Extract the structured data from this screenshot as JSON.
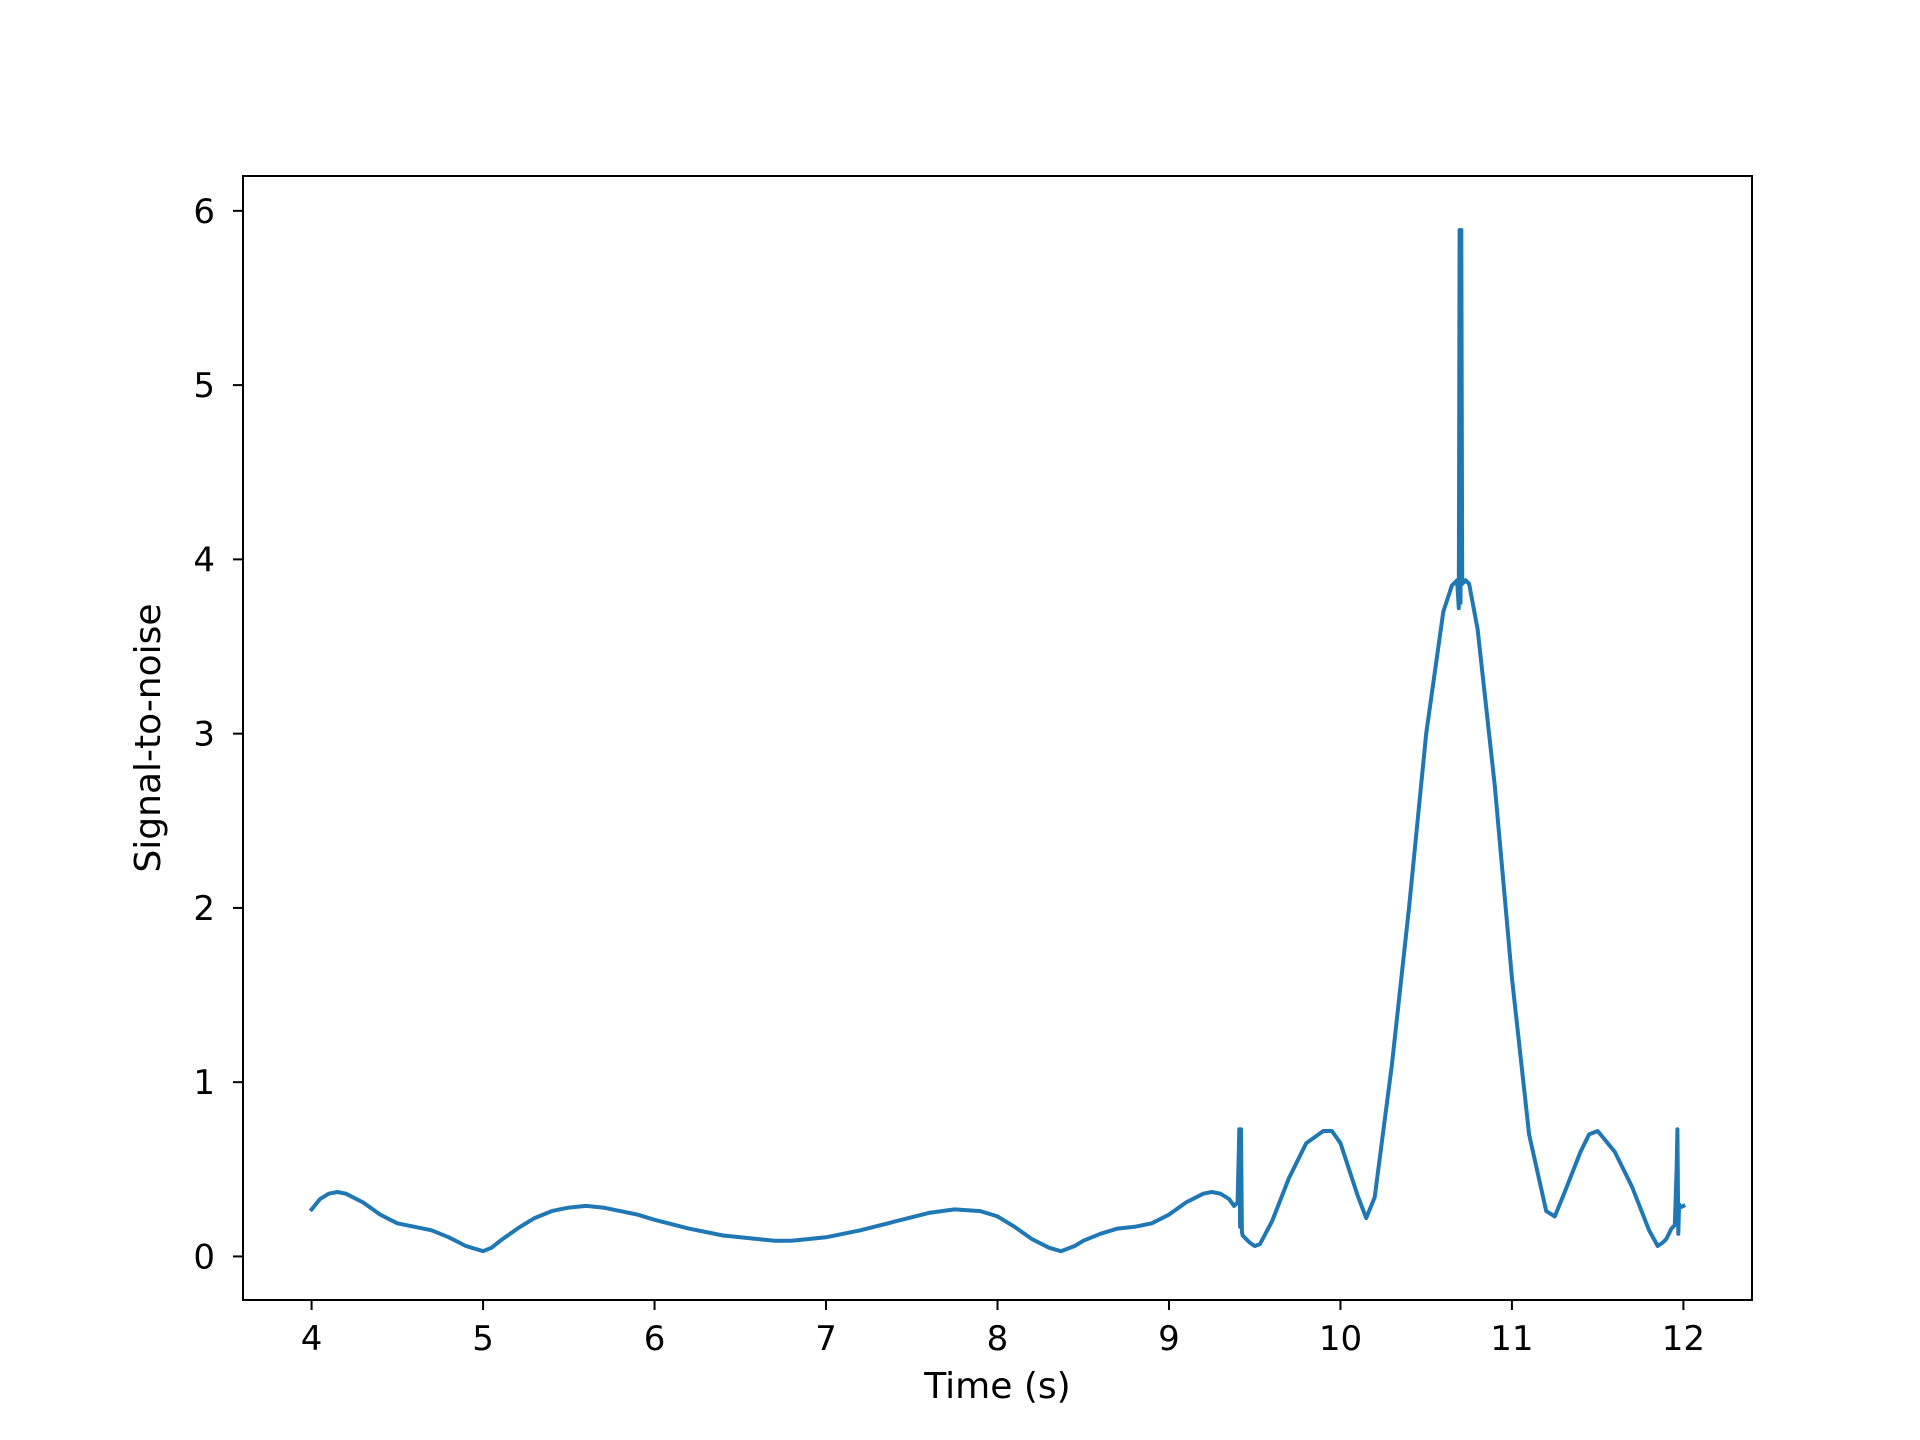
{
  "chart_data": {
    "type": "line",
    "title": "",
    "xlabel": "Time (s)",
    "ylabel": "Signal-to-noise",
    "xlim": [
      3.6,
      12.4
    ],
    "ylim": [
      -0.25,
      6.2
    ],
    "x_ticks": [
      4,
      5,
      6,
      7,
      8,
      9,
      10,
      11,
      12
    ],
    "y_ticks": [
      0,
      1,
      2,
      3,
      4,
      5,
      6
    ],
    "grid": false,
    "legend": "none",
    "series_color": "#1f77b4",
    "series": [
      {
        "x": [
          4.0,
          4.05,
          4.1,
          4.15,
          4.2,
          4.3,
          4.4,
          4.5,
          4.6,
          4.7,
          4.8,
          4.9,
          5.0,
          5.05,
          5.1,
          5.2,
          5.3,
          5.4,
          5.5,
          5.6,
          5.7,
          5.8,
          5.9,
          6.0,
          6.2,
          6.4,
          6.6,
          6.7,
          6.8,
          7.0,
          7.2,
          7.4,
          7.6,
          7.75,
          7.9,
          8.0,
          8.1,
          8.2,
          8.3,
          8.37,
          8.45,
          8.5,
          8.6,
          8.7,
          8.8,
          8.9,
          9.0,
          9.1,
          9.2,
          9.25,
          9.3,
          9.35,
          9.38,
          9.4,
          9.41,
          9.415,
          9.42,
          9.425,
          9.43,
          9.44,
          9.47,
          9.5,
          9.53,
          9.6,
          9.7,
          9.8,
          9.9,
          9.95,
          10.0,
          10.1,
          10.15,
          10.2,
          10.3,
          10.4,
          10.5,
          10.6,
          10.65,
          10.68,
          10.69,
          10.695,
          10.7,
          10.705,
          10.71,
          10.73,
          10.75,
          10.8,
          10.9,
          11.0,
          11.1,
          11.2,
          11.25,
          11.3,
          11.4,
          11.45,
          11.5,
          11.6,
          11.7,
          11.8,
          11.85,
          11.88,
          11.9,
          11.93,
          11.95,
          11.96,
          11.965,
          11.97,
          11.975,
          11.98,
          12.0
        ],
        "y": [
          0.27,
          0.33,
          0.36,
          0.37,
          0.36,
          0.31,
          0.24,
          0.19,
          0.17,
          0.15,
          0.11,
          0.06,
          0.03,
          0.05,
          0.09,
          0.16,
          0.22,
          0.26,
          0.28,
          0.29,
          0.28,
          0.26,
          0.24,
          0.21,
          0.16,
          0.12,
          0.1,
          0.09,
          0.09,
          0.11,
          0.15,
          0.2,
          0.25,
          0.27,
          0.26,
          0.23,
          0.17,
          0.1,
          0.05,
          0.03,
          0.06,
          0.09,
          0.13,
          0.16,
          0.17,
          0.19,
          0.24,
          0.31,
          0.36,
          0.37,
          0.36,
          0.33,
          0.29,
          0.31,
          0.73,
          0.17,
          0.73,
          0.14,
          0.12,
          0.11,
          0.08,
          0.06,
          0.07,
          0.2,
          0.45,
          0.65,
          0.72,
          0.72,
          0.65,
          0.35,
          0.22,
          0.34,
          1.1,
          2.0,
          3.0,
          3.7,
          3.85,
          3.88,
          3.72,
          5.89,
          3.75,
          5.89,
          3.86,
          3.88,
          3.86,
          3.6,
          2.7,
          1.6,
          0.7,
          0.26,
          0.23,
          0.35,
          0.6,
          0.7,
          0.72,
          0.6,
          0.4,
          0.15,
          0.06,
          0.08,
          0.1,
          0.16,
          0.18,
          0.5,
          0.73,
          0.13,
          0.3,
          0.28,
          0.29
        ]
      }
    ]
  }
}
